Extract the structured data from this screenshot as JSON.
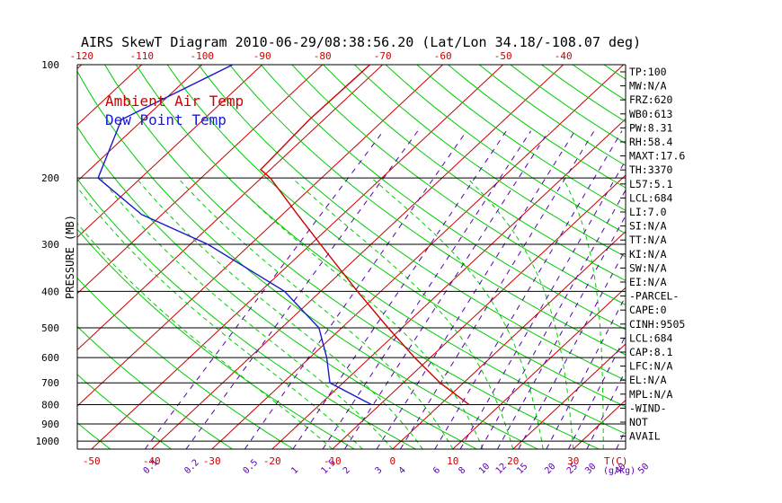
{
  "title": "AIRS SkewT Diagram 2010-06-29/08:38:56.20 (Lat/Lon 34.18/-108.07 deg)",
  "y_axis_label": "PRESSURE (MB)",
  "legend": [
    {
      "label": "Ambient Air Temp",
      "color": "#cc0000"
    },
    {
      "label": "Dew Point Temp",
      "color": "#1a1acc"
    }
  ],
  "colors": {
    "isotherm": "#cc0000",
    "dry_adiabat": "#00cc00",
    "mixing_ratio": "#5500aa",
    "moist_adiabat": "#00cc00",
    "axis_bottom_labels": "#cc0000",
    "mixing_labels": "#5500aa",
    "temp_profile": "#cc0000",
    "dew_profile": "#1a1acc"
  },
  "right_panel": [
    "TP:100",
    "MW:N/A",
    "FRZ:620",
    "WB0:613",
    "PW:8.31",
    "RH:58.4",
    "MAXT:17.6",
    "TH:3370",
    "L57:5.1",
    "LCL:684",
    "LI:7.0",
    "SI:N/A",
    "TT:N/A",
    "KI:N/A",
    "SW:N/A",
    "EI:N/A",
    "-PARCEL-",
    "CAPE:0",
    "CINH:9505",
    "LCL:684",
    "CAP:8.1",
    "LFC:N/A",
    "EL:N/A",
    "MPL:N/A",
    "-WIND-",
    "NOT",
    "AVAIL"
  ],
  "chart_data": {
    "type": "line",
    "title": "AIRS SkewT Diagram 2010-06-29/08:38:56.20 (Lat/Lon 34.18/-108.07 deg)",
    "ylabel": "PRESSURE (MB)",
    "xlabel": "T(C)",
    "y_scale": "log",
    "y_reversed": true,
    "pressure_levels": [
      100,
      200,
      300,
      400,
      500,
      600,
      700,
      800,
      900,
      1000
    ],
    "top_ticks": [
      -120,
      -110,
      -100,
      -90,
      -80,
      -70,
      -60,
      -50,
      -40
    ],
    "bottom_ticks": [
      -50,
      -40,
      -30,
      -20,
      -10,
      0,
      10,
      20,
      30
    ],
    "bottom_axis_end_label": "T(C)",
    "mixing_ratio_labels": [
      "0.1",
      "0.2",
      "0.5",
      "1",
      "1.5",
      "2",
      "3",
      "4",
      "6",
      "8",
      "10",
      "12",
      "15",
      "20",
      "25",
      "30",
      "40",
      "50"
    ],
    "mixing_ratio_unit": "g/kg",
    "grid": true,
    "legend_position": "top-left",
    "series": [
      {
        "name": "Ambient Air Temp",
        "color": "#cc0000",
        "points": [
          {
            "p": 100,
            "t": -72.1
          },
          {
            "p": 140,
            "t": -72.4
          },
          {
            "p": 190,
            "t": -71.6
          },
          {
            "p": 200,
            "t": -68.5
          },
          {
            "p": 250,
            "t": -57.5
          },
          {
            "p": 300,
            "t": -48.4
          },
          {
            "p": 400,
            "t": -33.9
          },
          {
            "p": 500,
            "t": -22.3
          },
          {
            "p": 600,
            "t": -12.6
          },
          {
            "p": 700,
            "t": -3.9
          },
          {
            "p": 800,
            "t": 4.8
          }
        ]
      },
      {
        "name": "Dew Point Temp",
        "color": "#1a1acc",
        "points": [
          {
            "p": 100,
            "t": -94.9
          },
          {
            "p": 140,
            "t": -103.6
          },
          {
            "p": 200,
            "t": -97.1
          },
          {
            "p": 250,
            "t": -83.4
          },
          {
            "p": 300,
            "t": -67.1
          },
          {
            "p": 400,
            "t": -46.0
          },
          {
            "p": 500,
            "t": -33.8
          },
          {
            "p": 600,
            "t": -27.2
          },
          {
            "p": 700,
            "t": -22.2
          },
          {
            "p": 800,
            "t": -11.4
          }
        ]
      }
    ]
  }
}
